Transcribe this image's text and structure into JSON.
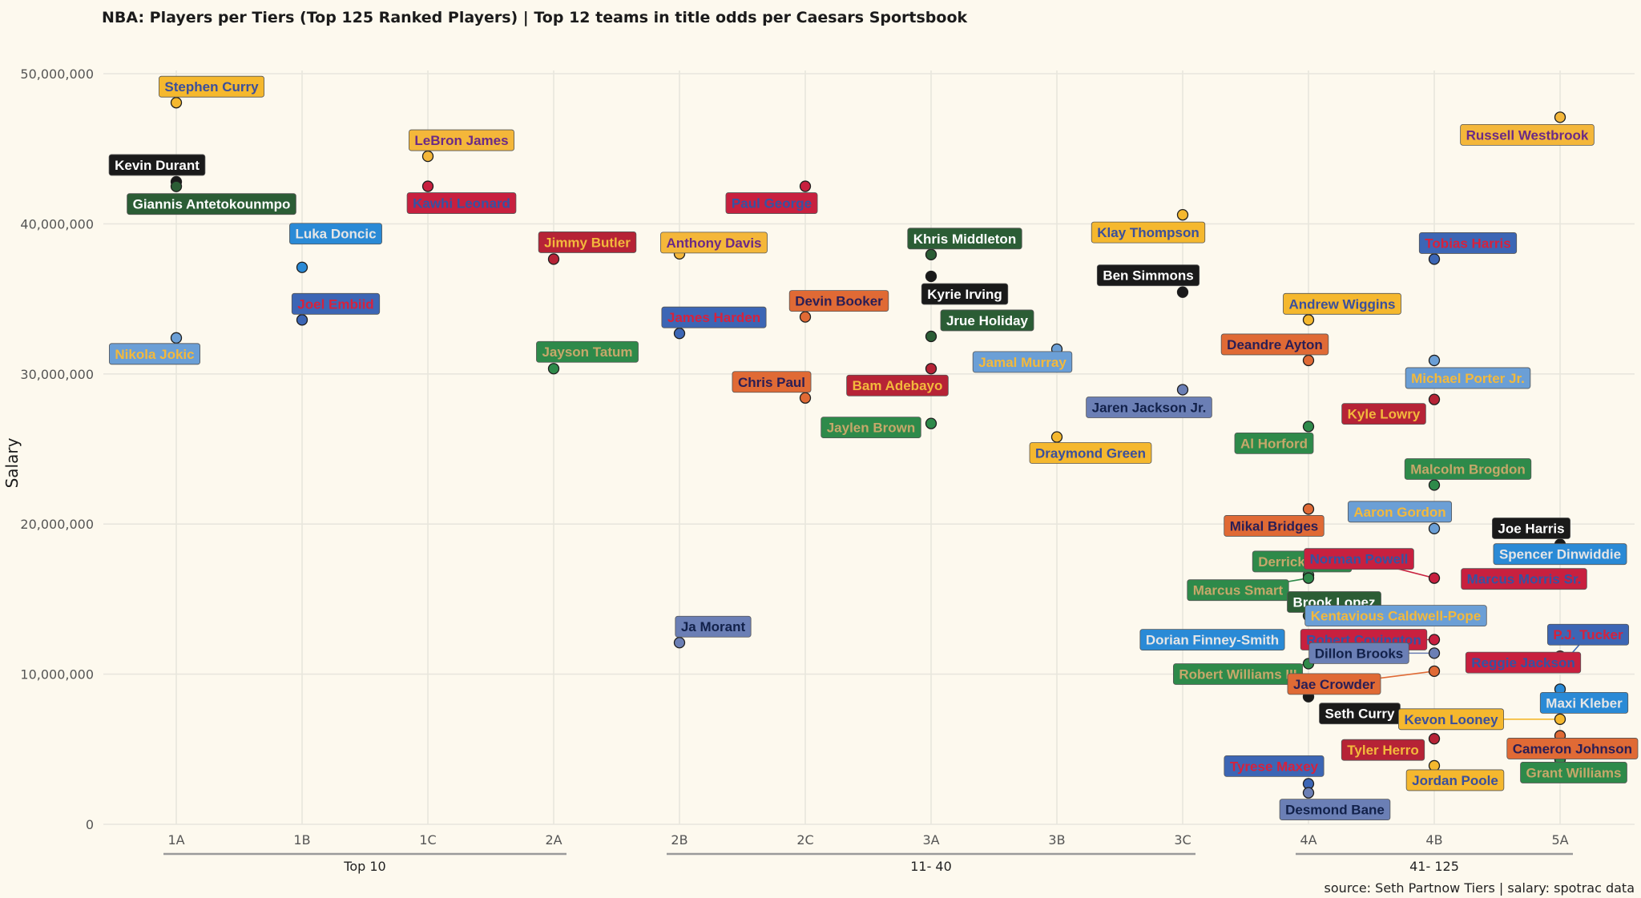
{
  "chart_data": {
    "type": "scatter",
    "title": "NBA: Players per Tiers (Top 125 Ranked Players) | Top 12 teams in title odds per Caesars Sportsbook",
    "xlabel": "",
    "ylabel": "Salary",
    "caption": "source: Seth Partnow Tiers | salary: spotrac data",
    "categories": [
      "1A",
      "1B",
      "1C",
      "2A",
      "2B",
      "2C",
      "3A",
      "3B",
      "3C",
      "4A",
      "4B",
      "5A"
    ],
    "y_ticks": [
      0,
      10000000,
      20000000,
      30000000,
      40000000,
      50000000
    ],
    "y_tick_labels": [
      "0",
      "10,000,000",
      "20,000,000",
      "30,000,000",
      "40,000,000",
      "50,000,000"
    ],
    "ylim": [
      0,
      50000000
    ],
    "grid": true,
    "legend": "none",
    "groups": [
      {
        "label": "Top 10",
        "from": "1A",
        "to": "2A"
      },
      {
        "label": "11- 40",
        "from": "2B",
        "to": "3C"
      },
      {
        "label": "41- 125",
        "from": "4A",
        "to": "5A"
      }
    ],
    "team_colors": {
      "GSW": {
        "fill": "#f5b82e",
        "text": "#3a4f9c"
      },
      "BKN": {
        "fill": "#1a1a1a",
        "text": "#ffffff"
      },
      "MIL": {
        "fill": "#2b5d35",
        "text": "#ffffff"
      },
      "LAL": {
        "fill": "#f4b73a",
        "text": "#6b2a86"
      },
      "LAC": {
        "fill": "#c8203f",
        "text": "#3553a3"
      },
      "DAL": {
        "fill": "#2a8ad6",
        "text": "#e6e6e6"
      },
      "PHI": {
        "fill": "#3c66b5",
        "text": "#d6223d"
      },
      "DEN": {
        "fill": "#6b9fd6",
        "text": "#f3b93c"
      },
      "MIA": {
        "fill": "#b62336",
        "text": "#f3b93c"
      },
      "BOS": {
        "fill": "#2e8a4a",
        "text": "#c6a86a"
      },
      "PHX": {
        "fill": "#e06a35",
        "text": "#2a1e55"
      },
      "MEM": {
        "fill": "#6b7fb5",
        "text": "#12214a"
      }
    },
    "points": [
      {
        "player": "Stephen Curry",
        "tier": "1A",
        "salary": 48070014,
        "team": "GSW"
      },
      {
        "player": "Kevin Durant",
        "tier": "1A",
        "salary": 42800000,
        "team": "BKN"
      },
      {
        "player": "Giannis Antetokounmpo",
        "tier": "1A",
        "salary": 42492492,
        "team": "MIL"
      },
      {
        "player": "Nikola Jokic",
        "tier": "1A",
        "salary": 32400000,
        "team": "DEN"
      },
      {
        "player": "Luka Doncic",
        "tier": "1B",
        "salary": 37100000,
        "team": "DAL"
      },
      {
        "player": "Joel Embiid",
        "tier": "1B",
        "salary": 33600000,
        "team": "PHI"
      },
      {
        "player": "LeBron James",
        "tier": "1C",
        "salary": 44500000,
        "team": "LAL"
      },
      {
        "player": "Kawhi Leonard",
        "tier": "1C",
        "salary": 42500000,
        "team": "LAC"
      },
      {
        "player": "Jimmy Butler",
        "tier": "2A",
        "salary": 37650000,
        "team": "MIA"
      },
      {
        "player": "Jayson Tatum",
        "tier": "2A",
        "salary": 30350000,
        "team": "BOS"
      },
      {
        "player": "Anthony Davis",
        "tier": "2B",
        "salary": 38000000,
        "team": "LAL"
      },
      {
        "player": "James Harden",
        "tier": "2B",
        "salary": 32700000,
        "team": "PHI"
      },
      {
        "player": "Ja Morant",
        "tier": "2B",
        "salary": 12100000,
        "team": "MEM"
      },
      {
        "player": "Paul George",
        "tier": "2C",
        "salary": 42500000,
        "team": "LAC"
      },
      {
        "player": "Devin Booker",
        "tier": "2C",
        "salary": 33800000,
        "team": "PHX"
      },
      {
        "player": "Chris Paul",
        "tier": "2C",
        "salary": 28400000,
        "team": "PHX"
      },
      {
        "player": "Khris Middleton",
        "tier": "3A",
        "salary": 37950000,
        "team": "MIL"
      },
      {
        "player": "Kyrie Irving",
        "tier": "3A",
        "salary": 36500000,
        "team": "BKN"
      },
      {
        "player": "Jrue Holiday",
        "tier": "3A",
        "salary": 32500000,
        "team": "MIL"
      },
      {
        "player": "Bam Adebayo",
        "tier": "3A",
        "salary": 30350000,
        "team": "MIA"
      },
      {
        "player": "Jaylen Brown",
        "tier": "3A",
        "salary": 26700000,
        "team": "BOS"
      },
      {
        "player": "Jamal Murray",
        "tier": "3B",
        "salary": 31650000,
        "team": "DEN"
      },
      {
        "player": "Draymond Green",
        "tier": "3B",
        "salary": 25800000,
        "team": "GSW"
      },
      {
        "player": "Klay Thompson",
        "tier": "3C",
        "salary": 40600000,
        "team": "GSW"
      },
      {
        "player": "Ben Simmons",
        "tier": "3C",
        "salary": 35450000,
        "team": "BKN"
      },
      {
        "player": "Jaren Jackson Jr.",
        "tier": "3C",
        "salary": 28950000,
        "team": "MEM"
      },
      {
        "player": "Andrew Wiggins",
        "tier": "4A",
        "salary": 33600000,
        "team": "GSW"
      },
      {
        "player": "Deandre Ayton",
        "tier": "4A",
        "salary": 30900000,
        "team": "PHX"
      },
      {
        "player": "Al Horford",
        "tier": "4A",
        "salary": 26500000,
        "team": "BOS"
      },
      {
        "player": "Mikal Bridges",
        "tier": "4A",
        "salary": 21000000,
        "team": "PHX"
      },
      {
        "player": "Derrick White",
        "tier": "4A",
        "salary": 16600000,
        "team": "BOS"
      },
      {
        "player": "Marcus Smart",
        "tier": "4A",
        "salary": 16400000,
        "team": "BOS"
      },
      {
        "player": "Brook Lopez",
        "tier": "4A",
        "salary": 13900000,
        "team": "MIL"
      },
      {
        "player": "Dorian Finney-Smith",
        "tier": "4A",
        "salary": 12400000,
        "team": "DAL"
      },
      {
        "player": "Robert Williams III",
        "tier": "4A",
        "salary": 10700000,
        "team": "BOS"
      },
      {
        "player": "Seth Curry",
        "tier": "4A",
        "salary": 8500000,
        "team": "BKN"
      },
      {
        "player": "Tyrese Maxey",
        "tier": "4A",
        "salary": 2700000,
        "team": "PHI"
      },
      {
        "player": "Desmond Bane",
        "tier": "4A",
        "salary": 2100000,
        "team": "MEM"
      },
      {
        "player": "Tobias Harris",
        "tier": "4B",
        "salary": 37650000,
        "team": "PHI"
      },
      {
        "player": "Michael Porter Jr.",
        "tier": "4B",
        "salary": 30900000,
        "team": "DEN"
      },
      {
        "player": "Kyle Lowry",
        "tier": "4B",
        "salary": 28300000,
        "team": "MIA"
      },
      {
        "player": "Malcolm Brogdon",
        "tier": "4B",
        "salary": 22600000,
        "team": "BOS"
      },
      {
        "player": "Aaron Gordon",
        "tier": "4B",
        "salary": 19700000,
        "team": "DEN"
      },
      {
        "player": "Norman Powell",
        "tier": "4B",
        "salary": 16400000,
        "team": "LAC"
      },
      {
        "player": "Kentavious Caldwell-Pope",
        "tier": "4B",
        "salary": 14000000,
        "team": "DEN"
      },
      {
        "player": "Robert Covington",
        "tier": "4B",
        "salary": 12300000,
        "team": "LAC"
      },
      {
        "player": "Dillon Brooks",
        "tier": "4B",
        "salary": 11400000,
        "team": "MEM"
      },
      {
        "player": "Jae Crowder",
        "tier": "4B",
        "salary": 10200000,
        "team": "PHX"
      },
      {
        "player": "Tyler Herro",
        "tier": "4B",
        "salary": 5700000,
        "team": "MIA"
      },
      {
        "player": "Jordan Poole",
        "tier": "4B",
        "salary": 3900000,
        "team": "GSW"
      },
      {
        "player": "Russell Westbrook",
        "tier": "5A",
        "salary": 47100000,
        "team": "LAL"
      },
      {
        "player": "Joe Harris",
        "tier": "5A",
        "salary": 18650000,
        "team": "BKN"
      },
      {
        "player": "Spencer Dinwiddie",
        "tier": "5A",
        "salary": 18000000,
        "team": "DAL"
      },
      {
        "player": "Marcus Morris Sr.",
        "tier": "5A",
        "salary": 16400000,
        "team": "LAC"
      },
      {
        "player": "P.J. Tucker",
        "tier": "5A",
        "salary": 10500000,
        "team": "PHI"
      },
      {
        "player": "Reggie Jackson",
        "tier": "5A",
        "salary": 11200000,
        "team": "LAC"
      },
      {
        "player": "Maxi Kleber",
        "tier": "5A",
        "salary": 9000000,
        "team": "DAL"
      },
      {
        "player": "Kevon Looney",
        "tier": "5A",
        "salary": 7000000,
        "team": "GSW"
      },
      {
        "player": "Cameron Johnson",
        "tier": "5A",
        "salary": 5900000,
        "team": "PHX"
      },
      {
        "player": "Grant Williams",
        "tier": "5A",
        "salary": 4300000,
        "team": "BOS"
      }
    ]
  }
}
